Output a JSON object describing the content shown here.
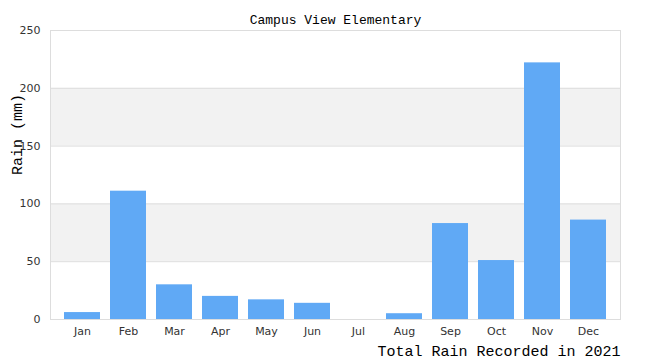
{
  "chart_data": {
    "type": "bar",
    "title": "Campus View Elementary",
    "x_label": "Total Rain Recorded in 2021",
    "y_label": "Rain (mm)",
    "categories": [
      "Jan",
      "Feb",
      "Mar",
      "Apr",
      "May",
      "Jun",
      "Jul",
      "Aug",
      "Sep",
      "Oct",
      "Nov",
      "Dec"
    ],
    "values": [
      6,
      111,
      30,
      20,
      17,
      14,
      0,
      5,
      83,
      51,
      222,
      86
    ],
    "color": "#60a9f5",
    "ylim": [
      0,
      250
    ],
    "yticks": [
      0,
      50,
      100,
      150,
      200,
      250
    ],
    "grid": true
  }
}
